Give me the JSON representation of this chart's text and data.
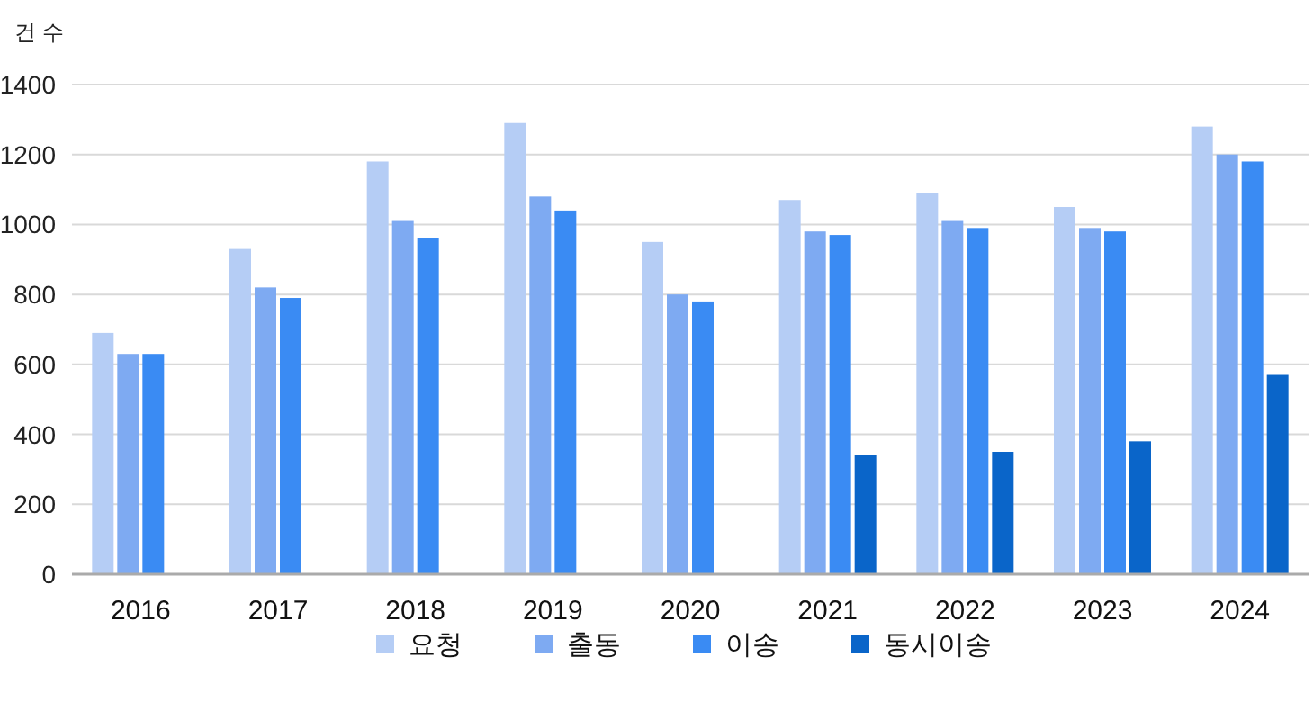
{
  "chart_data": {
    "type": "bar",
    "ylabel": "건 수",
    "categories": [
      "2016",
      "2017",
      "2018",
      "2019",
      "2020",
      "2021",
      "2022",
      "2023",
      "2024"
    ],
    "series": [
      {
        "name": "요청",
        "color": "#b5cdf5",
        "values": [
          690,
          930,
          1180,
          1290,
          950,
          1070,
          1090,
          1050,
          1280
        ]
      },
      {
        "name": "출동",
        "color": "#7eaaf2",
        "values": [
          630,
          820,
          1010,
          1080,
          800,
          980,
          1010,
          990,
          1200
        ]
      },
      {
        "name": "이송",
        "color": "#3a8bf3",
        "values": [
          630,
          790,
          960,
          1040,
          780,
          970,
          990,
          980,
          1180
        ]
      },
      {
        "name": "동시이송",
        "color": "#0a65c9",
        "values": [
          null,
          null,
          null,
          null,
          null,
          340,
          350,
          380,
          570
        ]
      }
    ],
    "ylim": [
      0,
      1400
    ],
    "yticks": [
      0,
      200,
      400,
      600,
      800,
      1000,
      1200,
      1400
    ],
    "grid": "y",
    "legend": "bottom"
  }
}
